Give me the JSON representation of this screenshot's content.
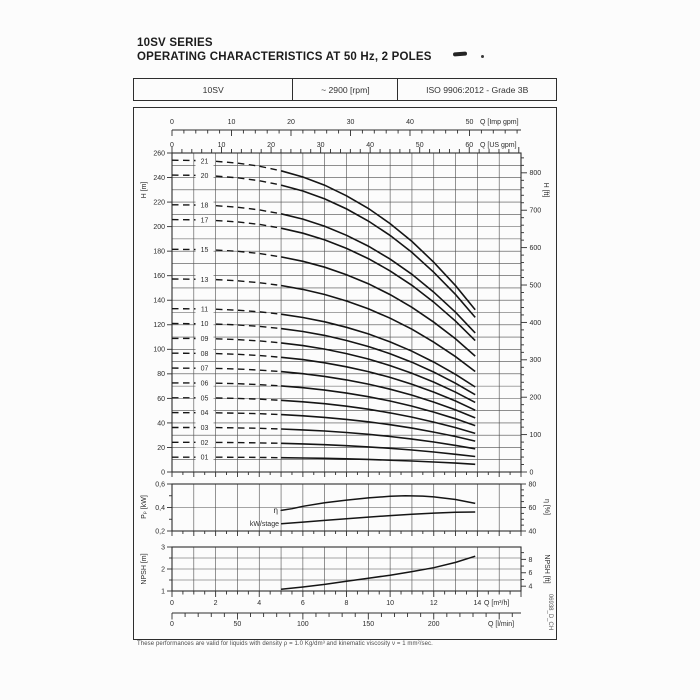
{
  "page": {
    "title_line1": "10SV SERIES",
    "title_line2": "OPERATING CHARACTERISTICS AT 50 Hz, 2 POLES",
    "footnote": "These performances are valid for liquids with density ρ = 1.0 Kg/dm³ and kinematic viscosity ν = 1 mm²/sec.",
    "doc_code": "06938_D_CH"
  },
  "header_table": {
    "series": "10SV",
    "speed": "~ 2900 [rpm]",
    "standard": "ISO 9906:2012 - Grade 3B"
  },
  "chart_data": [
    {
      "id": "head-curves",
      "type": "line",
      "title": "Head vs flow for 10SV pump stages 01-21",
      "x_axis": {
        "unit": "Q [m³/h]",
        "min": 0,
        "max": 16,
        "grid_step": 1
      },
      "top_axes": [
        {
          "label": "Q [Imp gpm]",
          "major_ticks": [
            0,
            10,
            20,
            30,
            40,
            50
          ],
          "minor_step": 2,
          "units_per_m3h": 3.6662
        },
        {
          "label": "Q [US gpm]",
          "major_ticks": [
            0,
            10,
            20,
            30,
            40,
            50,
            60
          ],
          "minor_step": 2,
          "units_per_m3h": 4.4029
        }
      ],
      "y_left": {
        "label": "H [m]",
        "min": 0,
        "max": 260,
        "label_step": 20,
        "grid_step": 10
      },
      "y_right": {
        "label": "H [ft]",
        "major_step": 100,
        "major_max": 800,
        "minor_step": 20,
        "ft_per_m": 3.2808
      },
      "q_points": [
        0,
        1,
        2,
        3,
        4,
        5,
        6,
        7,
        8,
        9,
        10,
        11,
        12,
        13,
        13.9
      ],
      "head_per_stage_m": [
        12.1,
        12.09,
        12.06,
        11.99,
        11.87,
        11.69,
        11.45,
        11.13,
        10.72,
        10.23,
        9.64,
        8.95,
        8.14,
        7.23,
        6.3
      ],
      "solid_from_q": 5,
      "stage_label_q": 1.5,
      "stages": [
        "01",
        "02",
        "03",
        "04",
        "05",
        "06",
        "07",
        "08",
        "09",
        "10",
        "11",
        "13",
        "15",
        "17",
        "18",
        "20",
        "21"
      ]
    },
    {
      "id": "power-efficiency",
      "type": "line",
      "title": "Power per stage and efficiency vs flow",
      "y_left": {
        "label": "Pₚ [kW]",
        "min": 0.2,
        "max": 0.6,
        "major_values": [
          0.2,
          0.4,
          0.6
        ],
        "major_labels": [
          "0,2",
          "0,4",
          "0,6"
        ],
        "minor_values": [
          0.3,
          0.5
        ],
        "grid_values": [
          0.4
        ]
      },
      "y_right": {
        "label": "η [%]",
        "min": 40,
        "max": 80,
        "major_ticks": [
          40,
          60,
          80
        ],
        "minor_step": 5
      },
      "series": [
        {
          "name": "η",
          "axis": "right",
          "x": [
            5,
            5.5,
            6,
            7,
            8,
            9,
            10,
            10.7,
            11.5,
            12,
            13,
            13.9
          ],
          "y": [
            57.5,
            59,
            61,
            64,
            66.3,
            68.2,
            69.5,
            70,
            69.7,
            69,
            66.8,
            63.5
          ]
        },
        {
          "name": "kW/stage",
          "axis": "left",
          "x": [
            5,
            6,
            7,
            8,
            9,
            10,
            11,
            12,
            13,
            13.9
          ],
          "y": [
            0.262,
            0.276,
            0.29,
            0.304,
            0.318,
            0.331,
            0.342,
            0.352,
            0.359,
            0.362
          ]
        }
      ]
    },
    {
      "id": "npsh",
      "type": "line",
      "title": "NPSH vs flow",
      "y_left": {
        "label": "NPSH [m]",
        "min": 1,
        "max": 3,
        "major_ticks": [
          1,
          2,
          3
        ],
        "minor_values": [
          1.5,
          2.5
        ],
        "grid_step": 0.5
      },
      "y_right": {
        "label": "NPSH [ft]",
        "major_ticks": [
          4,
          6,
          8
        ],
        "minor_step": 1,
        "ft_per_m": 3.2808
      },
      "series": [
        {
          "name": "NPSH",
          "x": [
            5,
            6,
            7,
            8,
            9,
            10,
            11,
            12,
            13,
            13.9
          ],
          "y": [
            1.08,
            1.18,
            1.3,
            1.44,
            1.58,
            1.72,
            1.88,
            2.06,
            2.3,
            2.58
          ]
        }
      ]
    }
  ],
  "bottom_axes": {
    "m3h": {
      "label": "Q [m³/h]",
      "major_ticks": [
        0,
        2,
        4,
        6,
        8,
        10,
        12,
        14
      ],
      "minor_step": 0.5
    },
    "lmin": {
      "label": "Q [l/min]",
      "major_ticks": [
        0,
        50,
        100,
        150,
        200
      ],
      "minor_step": 10,
      "units_per_m3h": 16.667
    }
  },
  "colors": {
    "line": "#151515",
    "grid": "#4d4d4d",
    "border": "#2e2e2e",
    "text": "#2b2b2b",
    "muted": "#5a5a5a"
  }
}
